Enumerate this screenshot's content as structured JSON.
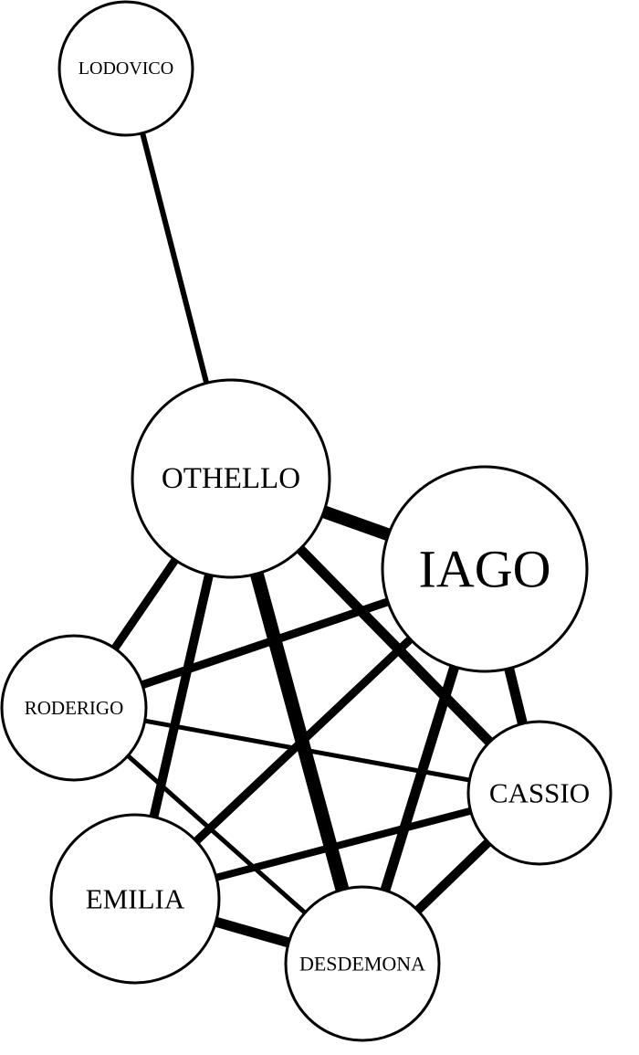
{
  "diagram": {
    "type": "character-network",
    "nodes": [
      {
        "id": "lodovico",
        "label": "LODOVICO"
      },
      {
        "id": "othello",
        "label": "OTHELLO"
      },
      {
        "id": "iago",
        "label": "IAGO"
      },
      {
        "id": "roderigo",
        "label": "RODERIGO"
      },
      {
        "id": "cassio",
        "label": "CASSIO"
      },
      {
        "id": "emilia",
        "label": "EMILIA"
      },
      {
        "id": "desdemona",
        "label": "DESDEMONA"
      }
    ],
    "edges": [
      {
        "source": "lodovico",
        "target": "othello"
      },
      {
        "source": "othello",
        "target": "iago"
      },
      {
        "source": "othello",
        "target": "roderigo"
      },
      {
        "source": "othello",
        "target": "emilia"
      },
      {
        "source": "othello",
        "target": "desdemona"
      },
      {
        "source": "othello",
        "target": "cassio"
      },
      {
        "source": "iago",
        "target": "roderigo"
      },
      {
        "source": "iago",
        "target": "emilia"
      },
      {
        "source": "iago",
        "target": "desdemona"
      },
      {
        "source": "iago",
        "target": "cassio"
      },
      {
        "source": "roderigo",
        "target": "cassio"
      },
      {
        "source": "roderigo",
        "target": "desdemona"
      },
      {
        "source": "cassio",
        "target": "emilia"
      },
      {
        "source": "cassio",
        "target": "desdemona"
      },
      {
        "source": "emilia",
        "target": "desdemona"
      }
    ]
  }
}
